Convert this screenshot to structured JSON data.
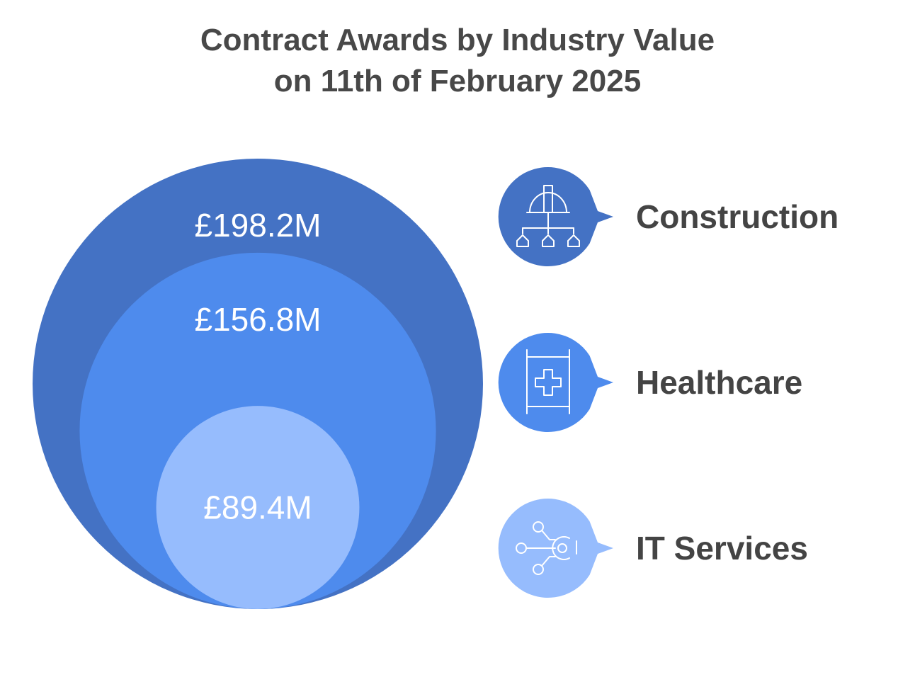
{
  "chart_data": {
    "type": "nested-bubble",
    "title_lines": [
      "Contract Awards by Industry Value",
      "on 11th of February 2025"
    ],
    "categories": [
      "Construction",
      "Healthcare",
      "IT Services"
    ],
    "values": [
      198.2,
      156.8,
      89.4
    ],
    "value_labels": [
      "£198.2M",
      "£156.8M",
      "£89.4M"
    ],
    "icons": [
      "construction-hierarchy-icon",
      "medical-cross-panel-icon",
      "network-nodes-icon"
    ],
    "colors": [
      "#4472C4",
      "#4E8BED",
      "#96BCFD"
    ]
  }
}
